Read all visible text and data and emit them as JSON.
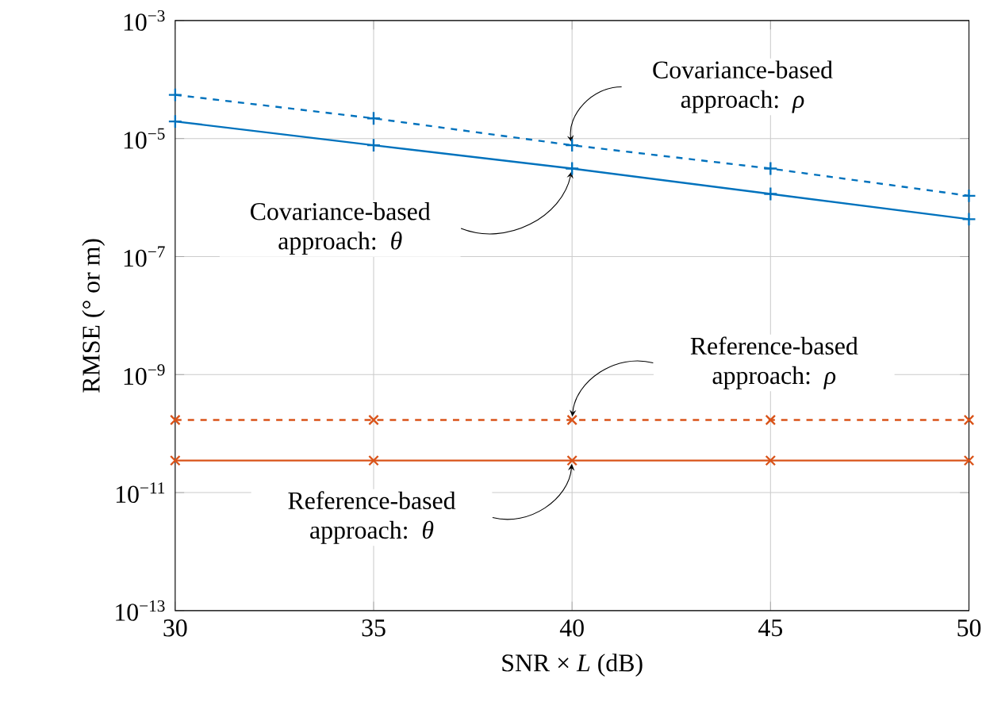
{
  "chart_data": {
    "type": "line",
    "xlabel": "SNR × *L* (dB)",
    "ylabel": "RMSE (° or m)",
    "x": [
      30,
      35,
      40,
      45,
      50
    ],
    "series": [
      {
        "color": "#0072bd",
        "values": [
          1.95e-05,
          7.7e-06,
          3.1e-06,
          1.15e-06,
          4.3e-07
        ],
        "marker": "plus",
        "line_style": "solid"
      },
      {
        "color": "#0072bd",
        "values": [
          5.5e-05,
          2.2e-05,
          7.7e-06,
          3.1e-06,
          1.07e-06
        ],
        "marker": "plus",
        "line_style": "dashed"
      },
      {
        "color": "#d95319",
        "values": [
          1.7e-10,
          1.7e-10,
          1.7e-10,
          1.7e-10,
          1.7e-10
        ],
        "marker": "cross",
        "line_style": "dashed"
      },
      {
        "color": "#d95319",
        "values": [
          3.5e-11,
          3.5e-11,
          3.5e-11,
          3.5e-11,
          3.5e-11
        ],
        "marker": "cross",
        "line_style": "solid"
      }
    ],
    "xlim": [
      30,
      50
    ],
    "xticks": [
      30,
      35,
      40,
      45,
      50
    ],
    "ylim": [
      1e-13,
      0.001
    ],
    "log": "y",
    "yticks": [
      {
        "value": 1e-13,
        "label": "10$^{−13}$"
      },
      {
        "value": 1e-11,
        "label": "10$^{−11}$"
      },
      {
        "value": 1e-09,
        "label": "10$^{−9}$"
      },
      {
        "value": 1e-07,
        "label": "10$^{−7}$"
      },
      {
        "value": 1e-05,
        "label": "10$^{−5}$"
      },
      {
        "value": 0.001,
        "label": "10$^{−3}$"
      }
    ],
    "grid": true,
    "annotations": [
      {
        "text": "Covariance-based approach: *ρ*",
        "x": 40,
        "y": 7.7e-06
      },
      {
        "text": "Covariance-based approach: *θ*",
        "x": 40,
        "y": 3.1e-06
      },
      "Reference-based approach: *ρ*",
      "Reference-based approach: *θ*"
    ]
  }
}
